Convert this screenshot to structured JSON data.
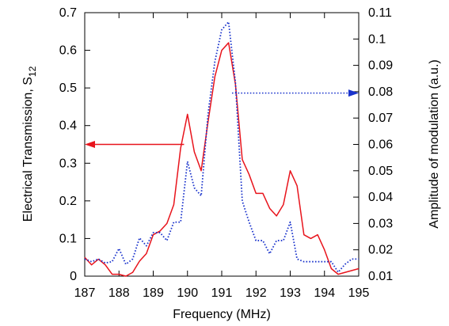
{
  "chart_data": {
    "type": "line",
    "xlabel": "Frequency (MHz)",
    "ylabel_left": {
      "main": "Electrical Transmission, S",
      "subscript": "12"
    },
    "ylabel_right": "Amplitude of modulation (a.u.)",
    "xlim": [
      187,
      195
    ],
    "ylim_left": [
      0,
      0.7
    ],
    "ylim_right": [
      0.01,
      0.11
    ],
    "x_ticks": [
      "187",
      "188",
      "189",
      "190",
      "191",
      "192",
      "193",
      "194",
      "195"
    ],
    "y_left_ticks": [
      "0",
      "0.1",
      "0.2",
      "0.3",
      "0.4",
      "0.5",
      "0.6",
      "0.7"
    ],
    "y_right_ticks": [
      "0.01",
      "0.02",
      "0.03",
      "0.04",
      "0.05",
      "0.06",
      "0.07",
      "0.08",
      "0.09",
      "0.1",
      "0.11"
    ],
    "grid": false,
    "series": [
      {
        "axis": "left",
        "style": "solid",
        "color": "#e8141c",
        "x": [
          187.0,
          187.2,
          187.4,
          187.6,
          187.8,
          188.0,
          188.2,
          188.4,
          188.6,
          188.8,
          189.0,
          189.2,
          189.4,
          189.6,
          189.8,
          190.0,
          190.2,
          190.4,
          190.6,
          190.8,
          191.0,
          191.2,
          191.4,
          191.6,
          191.8,
          192.0,
          192.2,
          192.4,
          192.6,
          192.8,
          193.0,
          193.2,
          193.4,
          193.6,
          193.8,
          194.0,
          194.2,
          194.4,
          194.6,
          194.8,
          195.0
        ],
        "y": [
          0.05,
          0.03,
          0.045,
          0.03,
          0.005,
          0.005,
          0.0,
          0.01,
          0.04,
          0.06,
          0.11,
          0.12,
          0.14,
          0.19,
          0.34,
          0.43,
          0.33,
          0.28,
          0.41,
          0.53,
          0.6,
          0.62,
          0.51,
          0.31,
          0.27,
          0.22,
          0.22,
          0.18,
          0.16,
          0.19,
          0.28,
          0.24,
          0.11,
          0.1,
          0.11,
          0.07,
          0.02,
          0.005,
          0.01,
          0.015,
          0.02
        ]
      },
      {
        "axis": "right",
        "style": "dotted",
        "color": "#1a33cc",
        "x": [
          187.0,
          187.2,
          187.4,
          187.6,
          187.8,
          188.0,
          188.2,
          188.4,
          188.6,
          188.8,
          189.0,
          189.2,
          189.4,
          189.6,
          189.8,
          190.0,
          190.2,
          190.4,
          190.6,
          190.8,
          191.0,
          191.2,
          191.4,
          191.6,
          191.8,
          192.0,
          192.2,
          192.4,
          192.6,
          192.8,
          193.0,
          193.2,
          193.4,
          193.6,
          193.8,
          194.0,
          194.2,
          194.4,
          194.6,
          194.8,
          195.0
        ],
        "y": [
          0.0165,
          0.0155,
          0.0165,
          0.015,
          0.0155,
          0.0205,
          0.0145,
          0.0165,
          0.0245,
          0.0215,
          0.0265,
          0.0265,
          0.0235,
          0.0305,
          0.0305,
          0.0535,
          0.0435,
          0.0405,
          0.0715,
          0.0915,
          0.1035,
          0.1065,
          0.0835,
          0.0385,
          0.0305,
          0.0235,
          0.0235,
          0.0185,
          0.0235,
          0.0235,
          0.0305,
          0.0165,
          0.0155,
          0.0155,
          0.0155,
          0.0155,
          0.0155,
          0.0115,
          0.0145,
          0.0165,
          0.0165
        ]
      }
    ],
    "annotations": [
      {
        "type": "arrow",
        "series": 0,
        "direction": "left",
        "color": "#e8141c",
        "x_from": 189.9,
        "x_to": 187.0,
        "y": 0.35
      },
      {
        "type": "arrow",
        "series": 1,
        "direction": "right",
        "color": "#1a33cc",
        "x_from": 191.3,
        "x_to": 195.0,
        "y": 0.0795
      }
    ]
  }
}
